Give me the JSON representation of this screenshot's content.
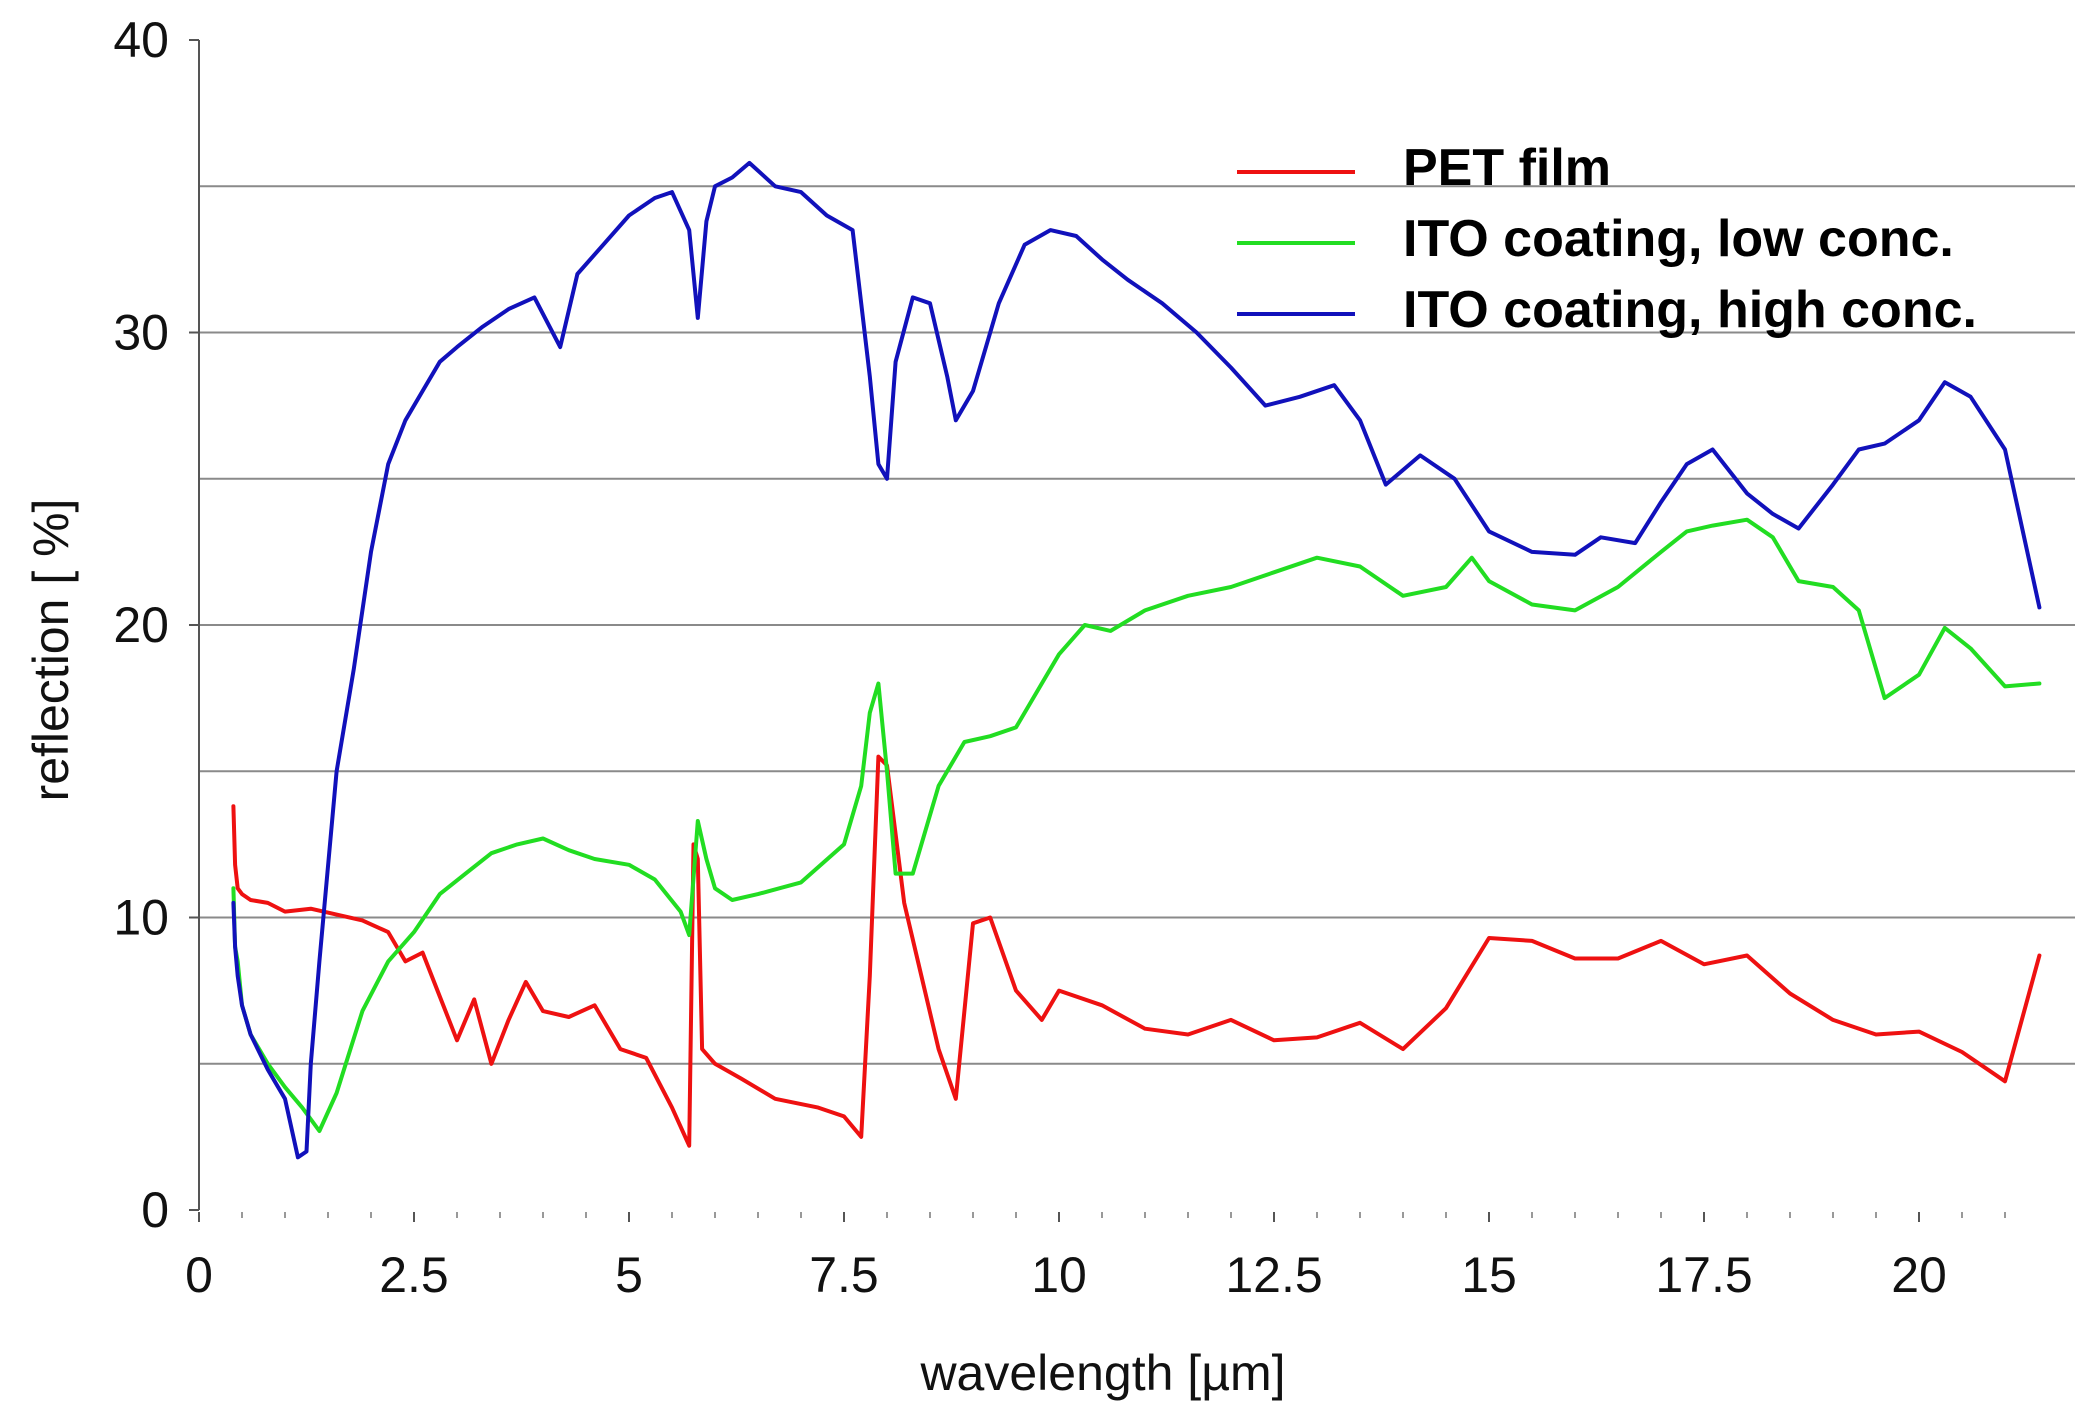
{
  "chart_data": {
    "type": "line",
    "title": "",
    "xlabel": "wavelength [µm]",
    "ylabel": "reflection [ %]",
    "xlim": [
      0,
      22
    ],
    "ylim": [
      0,
      40
    ],
    "xticks": [
      0,
      2.5,
      5,
      7.5,
      10,
      12.5,
      15,
      17.5,
      20
    ],
    "xtick_labels": [
      "0",
      "2.5",
      "5",
      "7.5",
      "10",
      "12.5",
      "15",
      "17.5",
      "20"
    ],
    "yticks": [
      0,
      10,
      20,
      30,
      40
    ],
    "ytick_labels": [
      "0",
      "10",
      "20",
      "30",
      "40"
    ],
    "gridlines_y": [
      5,
      10,
      15,
      20,
      25,
      30,
      35
    ],
    "grid": true,
    "legend_position": "top-right",
    "series": [
      {
        "name": "PET film",
        "color": "#ee1111",
        "x": [
          0.4,
          0.42,
          0.45,
          0.5,
          0.6,
          0.8,
          1.0,
          1.3,
          1.6,
          1.9,
          2.2,
          2.4,
          2.6,
          2.8,
          3.0,
          3.2,
          3.4,
          3.6,
          3.8,
          4.0,
          4.3,
          4.6,
          4.9,
          5.2,
          5.5,
          5.7,
          5.75,
          5.8,
          5.85,
          6.0,
          6.3,
          6.7,
          7.2,
          7.5,
          7.7,
          7.8,
          7.9,
          8.0,
          8.2,
          8.4,
          8.6,
          8.8,
          9.0,
          9.2,
          9.5,
          9.8,
          10.0,
          10.5,
          11.0,
          11.5,
          12.0,
          12.5,
          13.0,
          13.5,
          14.0,
          14.5,
          15.0,
          15.5,
          16.0,
          16.5,
          17.0,
          17.5,
          18.0,
          18.5,
          19.0,
          19.5,
          20.0,
          20.5,
          21.0,
          21.4
        ],
        "values": [
          13.8,
          11.8,
          11.0,
          10.8,
          10.6,
          10.5,
          10.2,
          10.3,
          10.1,
          9.9,
          9.5,
          8.5,
          8.8,
          7.3,
          5.8,
          7.2,
          5.0,
          6.5,
          7.8,
          6.8,
          6.6,
          7.0,
          5.5,
          5.2,
          3.5,
          2.2,
          12.5,
          12.0,
          5.5,
          5.0,
          4.5,
          3.8,
          3.5,
          3.2,
          2.5,
          8.0,
          15.5,
          15.2,
          10.5,
          8.0,
          5.5,
          3.8,
          9.8,
          10.0,
          7.5,
          6.5,
          7.5,
          7.0,
          6.2,
          6.0,
          6.5,
          5.8,
          5.9,
          6.4,
          5.5,
          6.9,
          9.3,
          9.2,
          8.6,
          8.6,
          9.2,
          8.4,
          8.7,
          7.4,
          6.5,
          6.0,
          6.1,
          5.4,
          4.4,
          8.7
        ]
      },
      {
        "name": "ITO coating, low conc.",
        "color": "#22dd22",
        "x": [
          0.4,
          0.42,
          0.45,
          0.5,
          0.6,
          0.8,
          1.0,
          1.2,
          1.4,
          1.6,
          1.9,
          2.2,
          2.5,
          2.8,
          3.1,
          3.4,
          3.7,
          4.0,
          4.3,
          4.6,
          5.0,
          5.3,
          5.6,
          5.7,
          5.8,
          5.9,
          6.0,
          6.2,
          6.5,
          7.0,
          7.5,
          7.7,
          7.8,
          7.9,
          8.0,
          8.1,
          8.3,
          8.6,
          8.9,
          9.2,
          9.5,
          9.8,
          10.0,
          10.3,
          10.6,
          11.0,
          11.5,
          12.0,
          12.5,
          13.0,
          13.5,
          14.0,
          14.5,
          14.8,
          15.0,
          15.5,
          16.0,
          16.5,
          17.0,
          17.3,
          17.6,
          18.0,
          18.3,
          18.6,
          19.0,
          19.3,
          19.6,
          20.0,
          20.3,
          20.6,
          21.0,
          21.4
        ],
        "values": [
          11.0,
          9.0,
          8.5,
          7.0,
          6.0,
          5.0,
          4.2,
          3.5,
          2.7,
          4.0,
          6.8,
          8.5,
          9.5,
          10.8,
          11.5,
          12.2,
          12.5,
          12.7,
          12.3,
          12.0,
          11.8,
          11.3,
          10.2,
          9.4,
          13.3,
          12.0,
          11.0,
          10.6,
          10.8,
          11.2,
          12.5,
          14.5,
          17.0,
          18.0,
          15.0,
          11.5,
          11.5,
          14.5,
          16.0,
          16.2,
          16.5,
          18.0,
          19.0,
          20.0,
          19.8,
          20.5,
          21.0,
          21.3,
          21.8,
          22.3,
          22.0,
          21.0,
          21.3,
          22.3,
          21.5,
          20.7,
          20.5,
          21.3,
          22.5,
          23.2,
          23.4,
          23.6,
          23.0,
          21.5,
          21.3,
          20.5,
          17.5,
          18.3,
          19.9,
          19.2,
          17.9,
          18.0
        ]
      },
      {
        "name": "ITO coating, high conc.",
        "color": "#1111bb",
        "x": [
          0.4,
          0.42,
          0.45,
          0.5,
          0.6,
          0.8,
          1.0,
          1.15,
          1.25,
          1.3,
          1.4,
          1.6,
          1.8,
          2.0,
          2.2,
          2.4,
          2.6,
          2.8,
          3.0,
          3.3,
          3.6,
          3.9,
          4.2,
          4.4,
          4.7,
          5.0,
          5.3,
          5.5,
          5.7,
          5.8,
          5.9,
          6.0,
          6.2,
          6.4,
          6.7,
          7.0,
          7.3,
          7.6,
          7.8,
          7.9,
          8.0,
          8.1,
          8.3,
          8.5,
          8.7,
          8.8,
          9.0,
          9.3,
          9.6,
          9.9,
          10.2,
          10.5,
          10.8,
          11.2,
          11.6,
          12.0,
          12.4,
          12.8,
          13.2,
          13.5,
          13.8,
          14.2,
          14.6,
          15.0,
          15.5,
          16.0,
          16.3,
          16.7,
          17.0,
          17.3,
          17.6,
          18.0,
          18.3,
          18.6,
          19.0,
          19.3,
          19.6,
          20.0,
          20.3,
          20.6,
          21.0,
          21.4
        ],
        "values": [
          10.5,
          9.0,
          8.0,
          7.0,
          6.0,
          4.8,
          3.8,
          1.8,
          2.0,
          5.0,
          8.5,
          15.0,
          18.5,
          22.5,
          25.5,
          27.0,
          28.0,
          29.0,
          29.5,
          30.2,
          30.8,
          31.2,
          29.5,
          32.0,
          33.0,
          34.0,
          34.6,
          34.8,
          33.5,
          30.5,
          33.8,
          35.0,
          35.3,
          35.8,
          35.0,
          34.8,
          34.0,
          33.5,
          28.5,
          25.5,
          25.0,
          29.0,
          31.2,
          31.0,
          28.5,
          27.0,
          28.0,
          31.0,
          33.0,
          33.5,
          33.3,
          32.5,
          31.8,
          31.0,
          30.0,
          28.8,
          27.5,
          27.8,
          28.2,
          27.0,
          24.8,
          25.8,
          25.0,
          23.2,
          22.5,
          22.4,
          23.0,
          22.8,
          24.2,
          25.5,
          26.0,
          24.5,
          23.8,
          23.3,
          24.8,
          26.0,
          26.2,
          27.0,
          28.3,
          27.8,
          26.0,
          20.6
        ]
      }
    ]
  }
}
